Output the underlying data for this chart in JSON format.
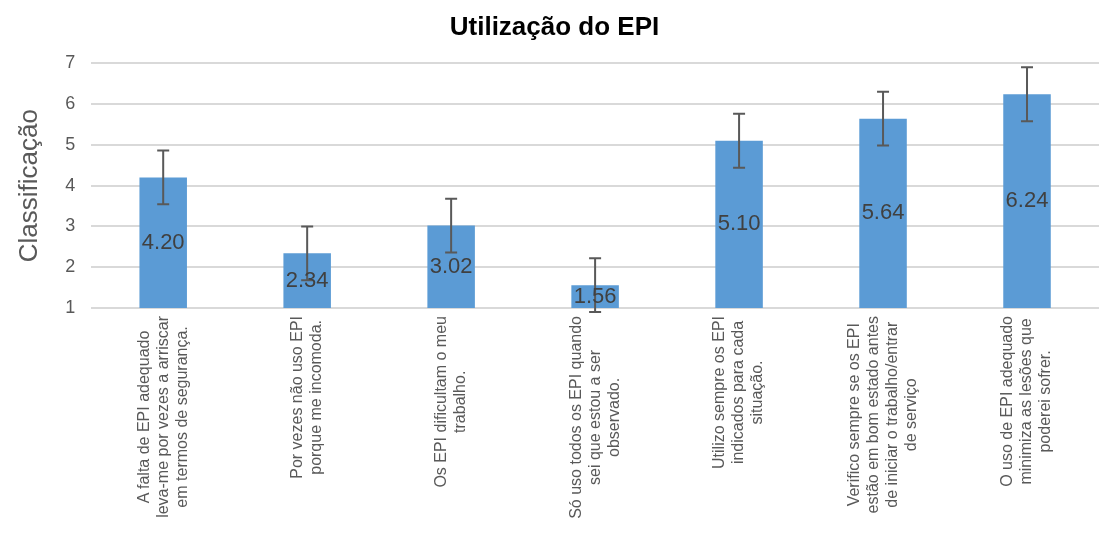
{
  "chart_data": {
    "type": "bar",
    "title": "Utilização do EPI",
    "ylabel": "Classificação",
    "categories": [
      "A falta de EPI adequado leva-me por vezes a arriscar em termos de segurança.",
      "Por vezes não uso EPI porque me incomoda.",
      "Os EPI dificultam o meu trabalho.",
      "Só uso todos os EPI quando sei que estou a ser observado.",
      "Utilizo sempre os EPI indicados para cada situação.",
      "Verifico sempre se os EPI estão em bom estado antes de iniciar o trabalho/entrar de serviço",
      "O uso de EPI adequado minimiza as lesões que poderei sofrer."
    ],
    "values": [
      4.2,
      2.34,
      3.02,
      1.56,
      5.1,
      5.64,
      6.24
    ],
    "value_labels": [
      "4.20",
      "2.34",
      "3.02",
      "1.56",
      "5.10",
      "5.64",
      "6.24"
    ],
    "errors": [
      0.66,
      0.66,
      0.66,
      0.66,
      0.66,
      0.66,
      0.66
    ],
    "color": "#5b9bd5",
    "ylim": [
      1,
      7
    ],
    "yticks": [
      1,
      2,
      3,
      4,
      5,
      6,
      7
    ],
    "grid": "y",
    "legend": false
  }
}
